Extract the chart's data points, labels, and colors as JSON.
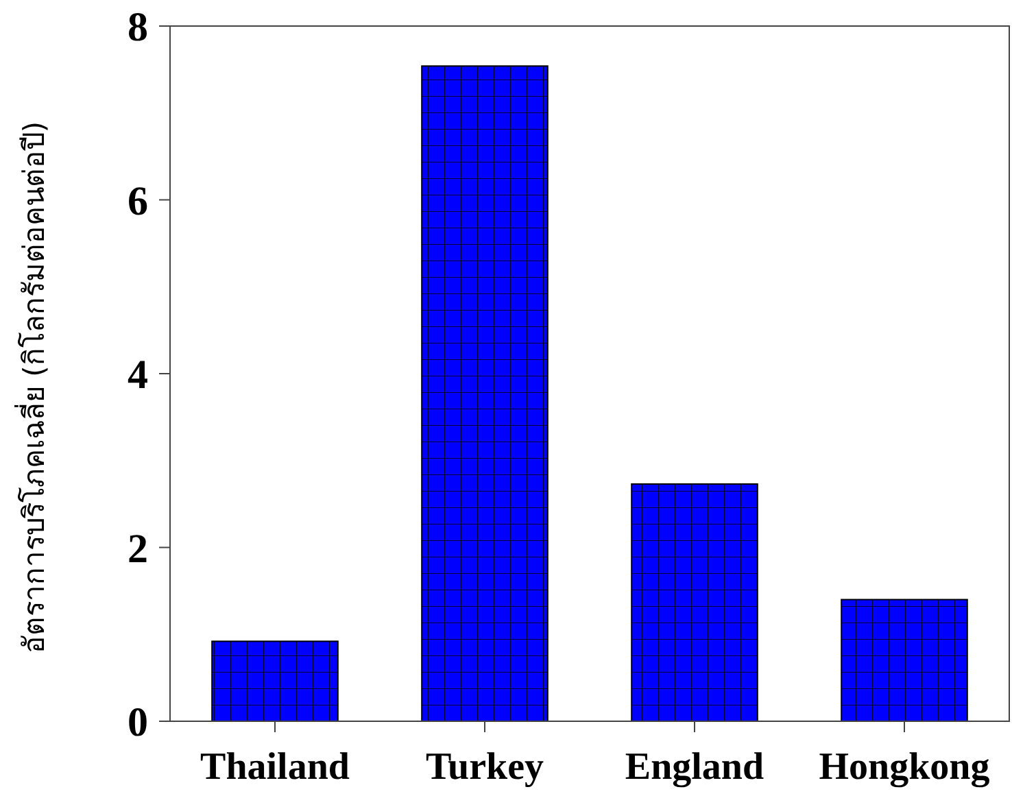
{
  "chart_data": {
    "type": "bar",
    "ylabel": "อัตราการบริโภคเฉลี่ย (กิโลกรัมต่อคนต่อปี)",
    "categories": [
      "Thailand",
      "Turkey",
      "England",
      "Hongkong"
    ],
    "values": [
      0.92,
      7.54,
      2.73,
      1.4
    ],
    "color": "#0000ff",
    "ylim": [
      0,
      8
    ],
    "yticks": [
      0,
      2,
      4,
      6,
      8
    ],
    "grid": false
  }
}
